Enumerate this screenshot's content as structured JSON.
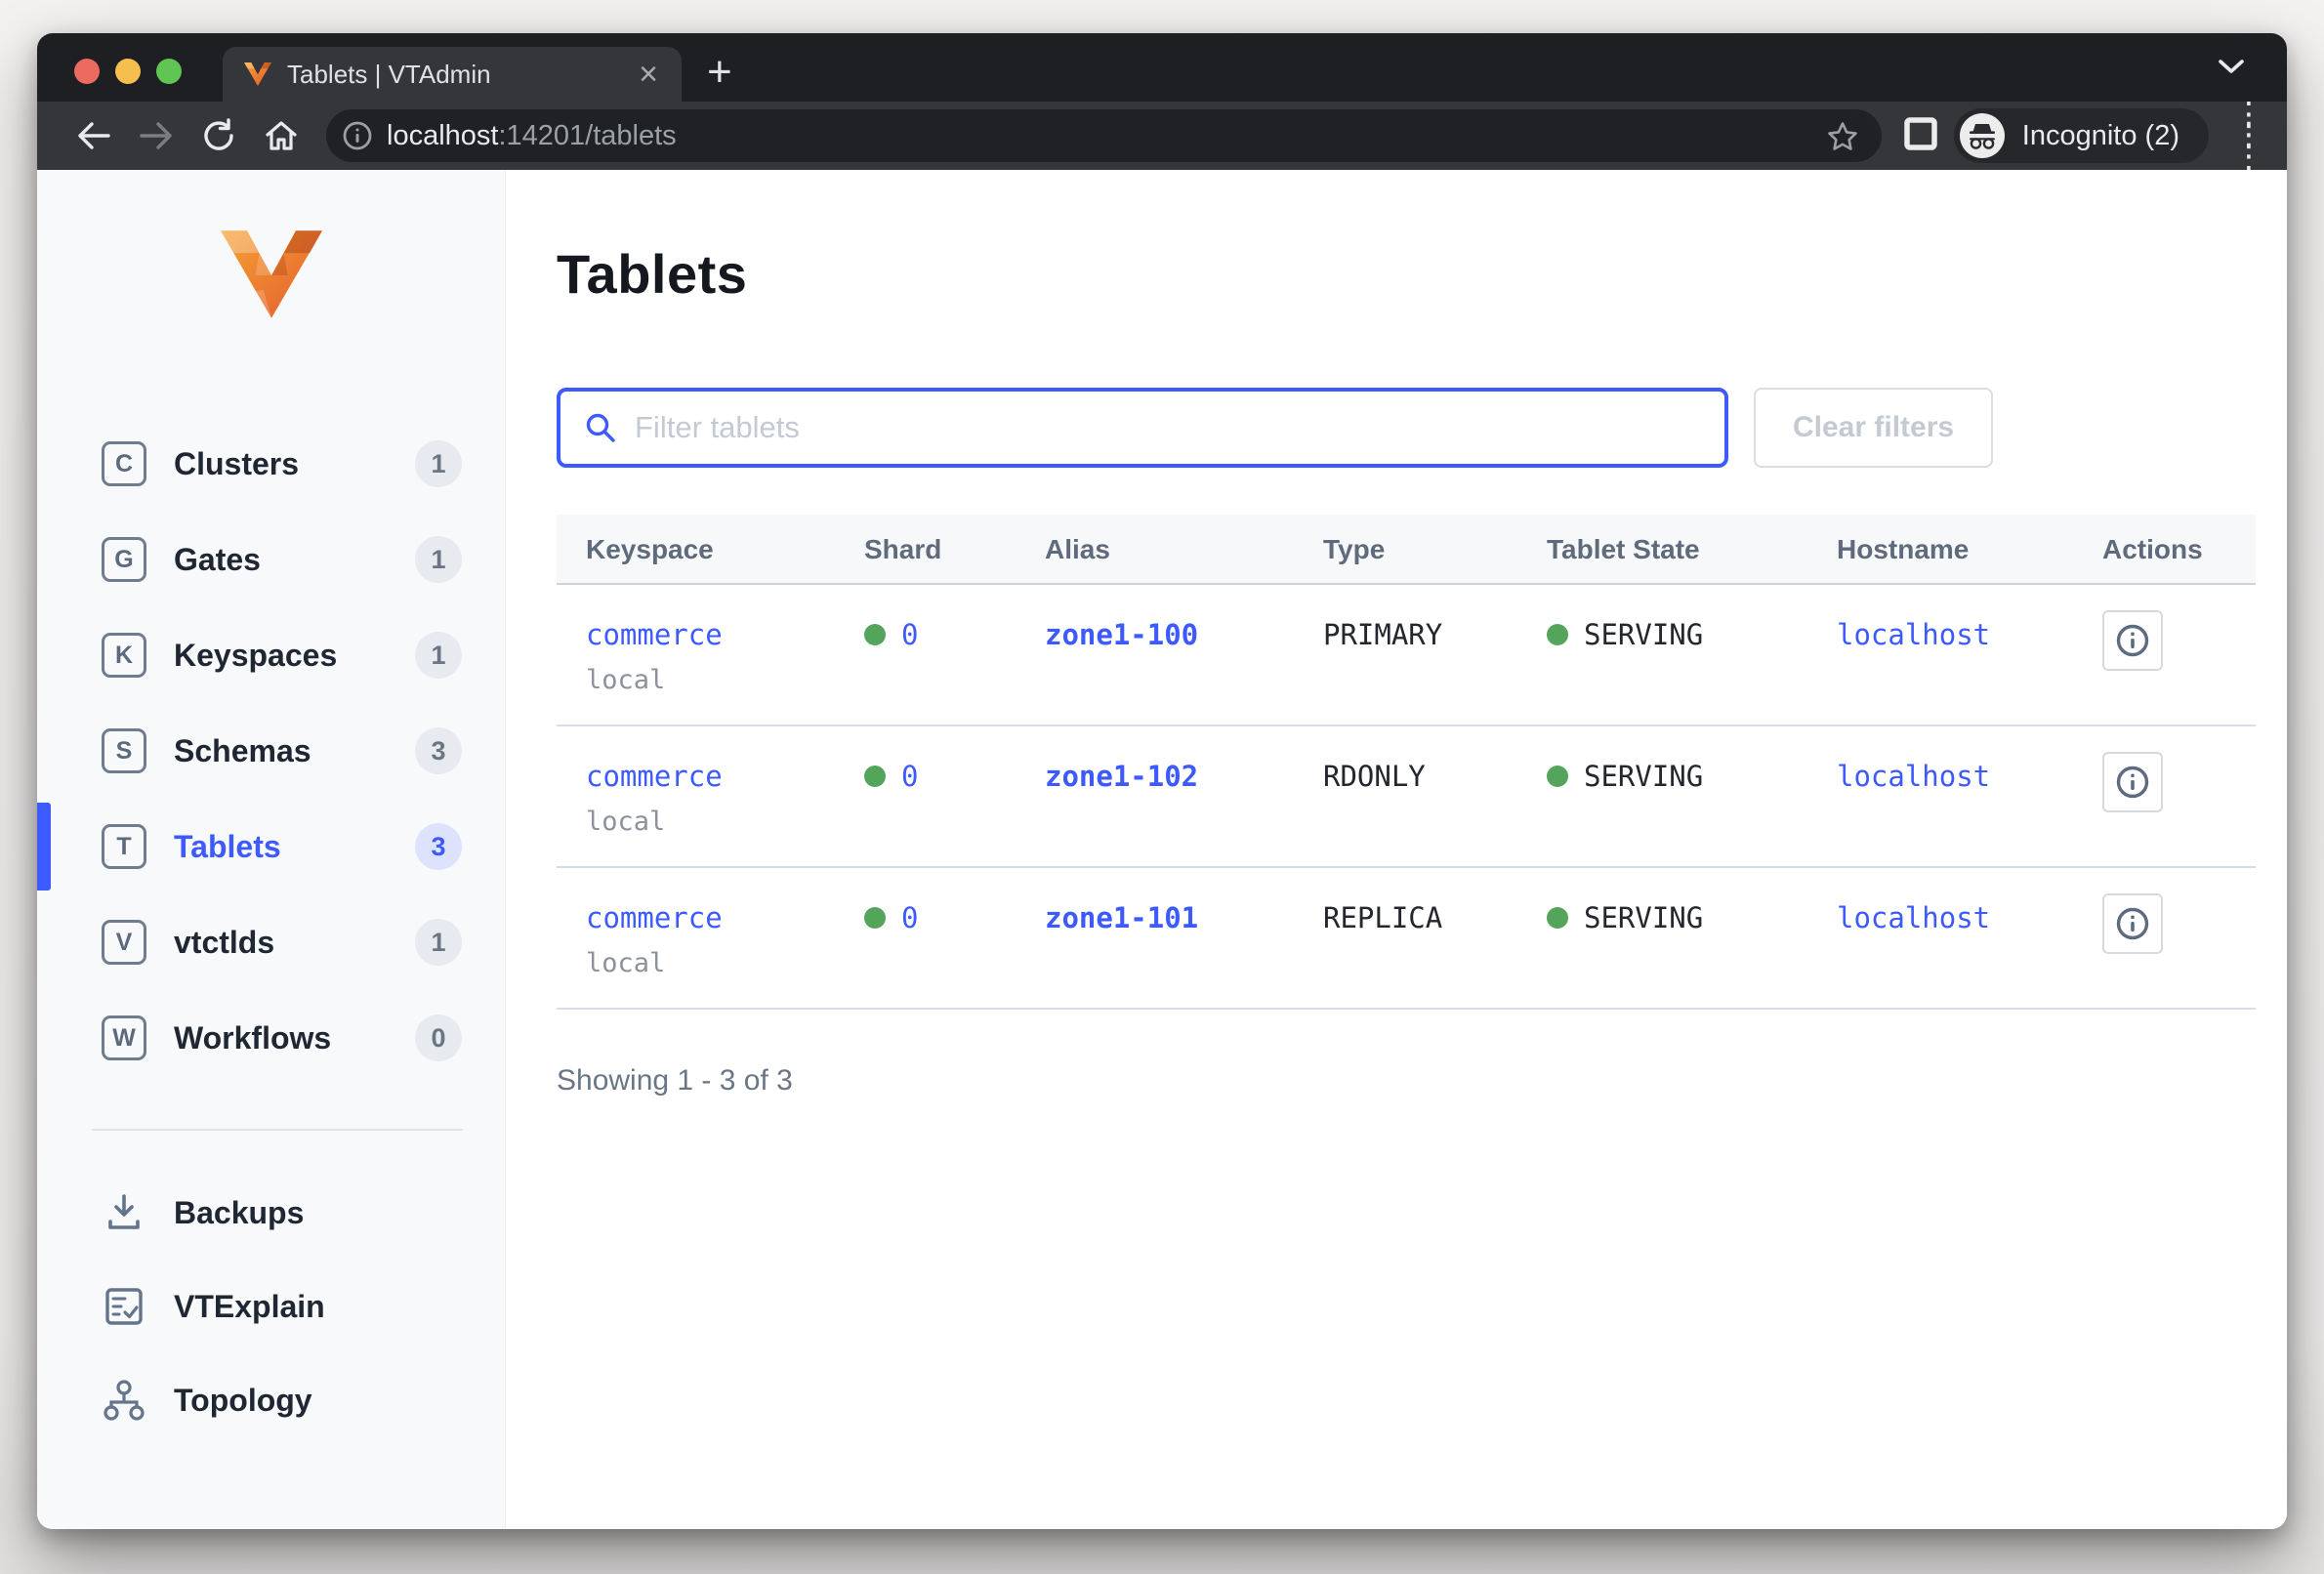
{
  "browser": {
    "tab_title": "Tablets | VTAdmin",
    "url_host": "localhost",
    "url_path": ":14201/tablets",
    "incognito_label": "Incognito (2)"
  },
  "sidebar": {
    "items": [
      {
        "letter": "C",
        "label": "Clusters",
        "count": "1",
        "active": false
      },
      {
        "letter": "G",
        "label": "Gates",
        "count": "1",
        "active": false
      },
      {
        "letter": "K",
        "label": "Keyspaces",
        "count": "1",
        "active": false
      },
      {
        "letter": "S",
        "label": "Schemas",
        "count": "3",
        "active": false
      },
      {
        "letter": "T",
        "label": "Tablets",
        "count": "3",
        "active": true
      },
      {
        "letter": "V",
        "label": "vtctlds",
        "count": "1",
        "active": false
      },
      {
        "letter": "W",
        "label": "Workflows",
        "count": "0",
        "active": false
      }
    ],
    "bottom_items": {
      "backups": "Backups",
      "vtexplain": "VTExplain",
      "topology": "Topology"
    }
  },
  "main": {
    "title": "Tablets",
    "filter_placeholder": "Filter tablets",
    "clear_filters_label": "Clear filters",
    "table": {
      "columns": [
        "Keyspace",
        "Shard",
        "Alias",
        "Type",
        "Tablet State",
        "Hostname",
        "Actions"
      ],
      "rows": [
        {
          "keyspace": "commerce",
          "cluster": "local",
          "shard": "0",
          "alias": "zone1-100",
          "type": "PRIMARY",
          "state": "SERVING",
          "hostname": "localhost"
        },
        {
          "keyspace": "commerce",
          "cluster": "local",
          "shard": "0",
          "alias": "zone1-102",
          "type": "RDONLY",
          "state": "SERVING",
          "hostname": "localhost"
        },
        {
          "keyspace": "commerce",
          "cluster": "local",
          "shard": "0",
          "alias": "zone1-101",
          "type": "REPLICA",
          "state": "SERVING",
          "hostname": "localhost"
        }
      ]
    },
    "summary": "Showing 1 - 3 of 3"
  },
  "colors": {
    "accent_blue": "#3d5afe",
    "serving_green": "#55a45c",
    "sidebar_bg": "#f8f9fb",
    "chrome_dark": "#1e1f22",
    "toolbar_dark": "#35363a",
    "logo_orange": "#ed7838"
  }
}
